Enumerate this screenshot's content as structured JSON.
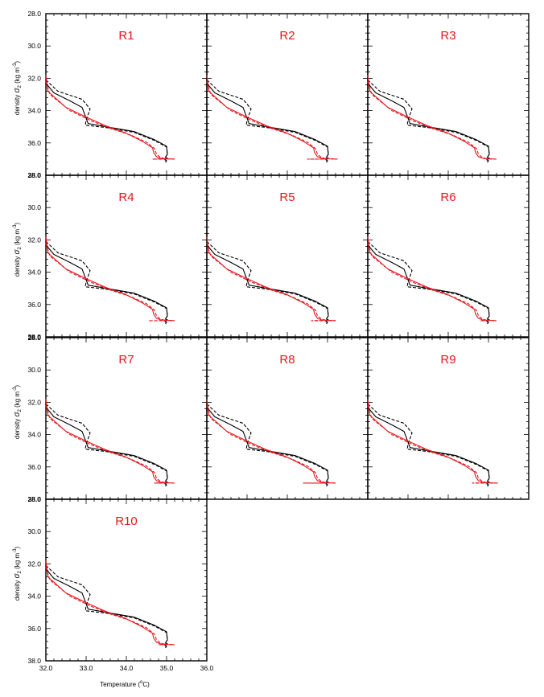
{
  "figure": {
    "ylabel": {
      "main": "density ",
      "sigma": "σ",
      "sub": "2",
      "units_open": " (kg m",
      "units_exp": "-3",
      "units_close": ")"
    },
    "xlabel": {
      "main": "Temperature (",
      "deg": "o",
      "unit": "C)"
    },
    "colors": {
      "obs": "#000000",
      "model": "#e8141b",
      "title": "#e8141b"
    }
  },
  "chart_data": {
    "type": "line",
    "layout": "small multiples, 4 rows x 3 columns, 10 panels",
    "xlim": [
      32.0,
      36.0
    ],
    "ylim": [
      28.0,
      38.0
    ],
    "y_inverted": true,
    "xticks": [
      32.0,
      33.0,
      34.0,
      35.0,
      36.0
    ],
    "xtick_labels": [
      "32.0",
      "33.0",
      "34.0",
      "35.0",
      "36.0"
    ],
    "yticks": [
      28.0,
      30.0,
      32.0,
      34.0,
      36.0,
      38.0
    ],
    "ytick_labels": [
      "28.0",
      "30.0",
      "32.0",
      "34.0",
      "36.0",
      "38.0"
    ],
    "xlabel": "Temperature (oC)",
    "ylabel": "density σ2 (kg m-3)",
    "base_series": [
      {
        "style": "solid",
        "color": "#000000",
        "x": [
          32.0,
          32.03,
          32.2,
          32.6,
          32.9,
          33.05,
          33.5,
          34.2,
          34.7,
          35.0,
          35.02,
          34.97,
          35.02,
          34.96,
          35.0,
          34.97
        ],
        "y": [
          31.9,
          32.4,
          32.9,
          33.4,
          33.8,
          34.8,
          35.0,
          35.3,
          35.8,
          36.2,
          36.7,
          36.9,
          36.95,
          37.05,
          37.1,
          37.2
        ]
      },
      {
        "style": "dashed",
        "color": "#000000",
        "x": [
          32.0,
          32.3,
          32.9,
          33.1,
          33.0,
          32.98,
          33.5,
          34.2,
          34.7,
          35.0,
          35.02,
          34.97,
          35.02,
          34.96,
          35.0
        ],
        "y": [
          32.1,
          32.8,
          33.3,
          33.9,
          34.6,
          34.9,
          35.05,
          35.35,
          35.85,
          36.25,
          36.7,
          36.9,
          36.95,
          37.05,
          37.15
        ]
      },
      {
        "style": "solid",
        "color": "#e8141b",
        "x": [
          32.0,
          32.05,
          32.5,
          33.0,
          33.5,
          34.0,
          34.4,
          34.65,
          34.68,
          34.75,
          34.85,
          35.0,
          35.2
        ],
        "y": [
          31.8,
          32.8,
          33.8,
          34.4,
          34.95,
          35.4,
          35.9,
          36.3,
          36.6,
          36.85,
          36.95,
          36.98,
          37.0
        ]
      },
      {
        "style": "dashed",
        "color": "#e8141b",
        "x": [
          32.0,
          32.1,
          32.6,
          33.1,
          33.6,
          34.1,
          34.5,
          34.7,
          34.75,
          34.85,
          35.0
        ],
        "y": [
          32.2,
          33.0,
          34.0,
          34.6,
          35.1,
          35.5,
          35.95,
          36.35,
          36.7,
          36.9,
          37.0
        ]
      }
    ],
    "panels": [
      {
        "title": "R1",
        "tail_x": [
          34.65,
          34.95,
          35.1,
          35.2
        ],
        "tail_y": [
          37.0,
          36.98,
          37.0,
          36.99
        ]
      },
      {
        "title": "R2",
        "tail_x": [
          34.5,
          34.85,
          35.05,
          35.25
        ],
        "tail_y": [
          37.0,
          37.0,
          36.98,
          37.0
        ]
      },
      {
        "title": "R3",
        "tail_x": [
          34.95,
          35.05,
          35.15
        ],
        "tail_y": [
          37.0,
          36.99,
          37.0
        ]
      },
      {
        "title": "R4",
        "tail_x": [
          34.55,
          34.9,
          35.1,
          35.2
        ],
        "tail_y": [
          37.0,
          37.0,
          36.98,
          37.0
        ]
      },
      {
        "title": "R5",
        "tail_x": [
          34.6,
          34.9,
          35.1,
          35.2
        ],
        "tail_y": [
          37.0,
          36.98,
          37.0,
          36.99
        ]
      },
      {
        "title": "R6",
        "tail_x": [
          34.8,
          35.0,
          35.15
        ],
        "tail_y": [
          37.0,
          36.98,
          37.0
        ]
      },
      {
        "title": "R7",
        "tail_x": [
          34.7,
          34.95,
          35.15
        ],
        "tail_y": [
          37.0,
          36.98,
          37.0
        ]
      },
      {
        "title": "R8",
        "tail_x": [
          34.4,
          34.8,
          35.05,
          35.2
        ],
        "tail_y": [
          37.0,
          37.0,
          36.98,
          37.0
        ]
      },
      {
        "title": "R9",
        "tail_x": [
          34.6,
          34.9,
          35.1,
          35.25
        ],
        "tail_y": [
          37.0,
          36.98,
          37.0,
          37.0
        ]
      },
      {
        "title": "R10",
        "tail_x": [
          34.8,
          35.0,
          35.15
        ],
        "tail_y": [
          37.0,
          36.98,
          37.0
        ]
      }
    ]
  }
}
